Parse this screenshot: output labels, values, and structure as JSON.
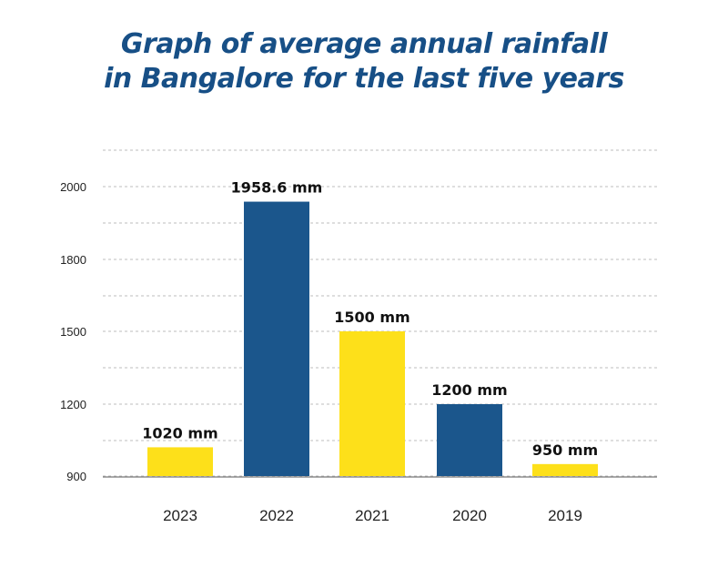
{
  "chart_data": {
    "type": "bar",
    "title": "Graph of average annual rainfall in Bangalore for the last five years",
    "title_lines": [
      "Graph of average annual rainfall",
      "in Bangalore for the last five years"
    ],
    "xlabel": "",
    "ylabel": "",
    "categories": [
      "2023",
      "2022",
      "2021",
      "2020",
      "2019"
    ],
    "values": [
      1020,
      1958.6,
      1500,
      1200,
      950
    ],
    "data_labels": [
      "1020 mm",
      "1958.6 mm",
      "1500 mm",
      "1200 mm",
      "950 mm"
    ],
    "bar_colors": [
      "#fde01a",
      "#1b568c",
      "#fde01a",
      "#1b568c",
      "#fde01a"
    ],
    "y_ticks": [
      900,
      1200,
      1500,
      1800,
      2000
    ],
    "ylim": [
      900,
      2100
    ],
    "grid": true,
    "grid_style": "dashed",
    "legend": "none"
  },
  "colors": {
    "title": "#174f86",
    "yellow": "#fde01a",
    "blue": "#1b568c",
    "grid": "#bdbdbd",
    "axis": "#777777"
  }
}
